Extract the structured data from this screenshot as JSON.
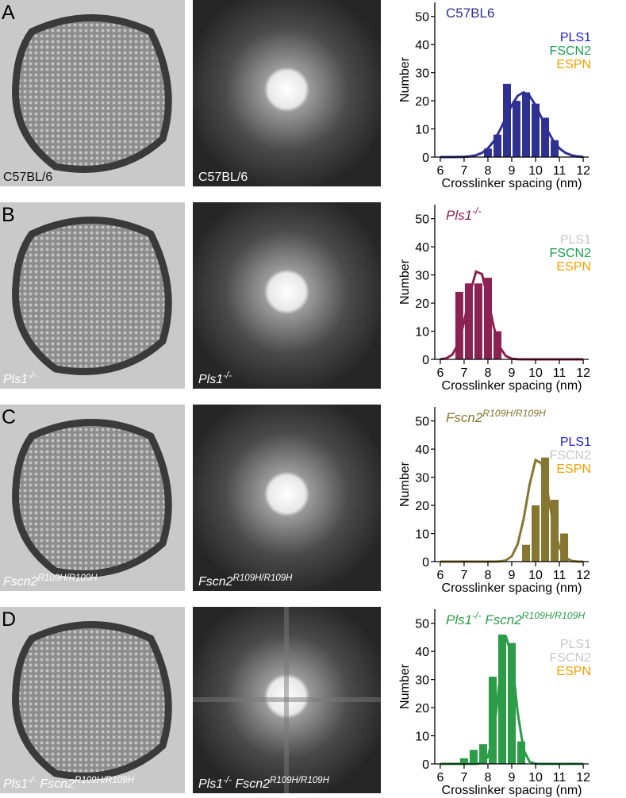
{
  "panels": [
    {
      "letter": "A",
      "em_caption": [
        "C57BL/6"
      ],
      "fft_caption": [
        "C57BL/6"
      ]
    },
    {
      "letter": "B",
      "em_caption": [
        "Pls1",
        "-/-"
      ],
      "fft_caption": [
        "Pls1",
        "-/-"
      ]
    },
    {
      "letter": "C",
      "em_caption": [
        "Fscn2",
        "R109H/R109H"
      ],
      "fft_caption": [
        "Fscn2",
        "R109H/R109H"
      ]
    },
    {
      "letter": "D",
      "em_caption": [
        "Pls1",
        "-/-",
        " Fscn2",
        "R109H/R109H"
      ],
      "fft_caption": [
        "Pls1",
        "-/-",
        " Fscn2",
        "R109H/R109H"
      ]
    }
  ],
  "chart_data": [
    {
      "type": "histogram",
      "title": [
        "C57BL6"
      ],
      "title_italic": false,
      "color": "#2e3192",
      "legend": [
        {
          "name": "PLS1",
          "color": "#2020c8"
        },
        {
          "name": "FSCN2",
          "color": "#1aa050"
        },
        {
          "name": "ESPN",
          "color": "#f5a000"
        }
      ],
      "bins": [
        7.8,
        8.2,
        8.6,
        9.0,
        9.4,
        9.8,
        10.2,
        10.6,
        11.0
      ],
      "values": [
        3,
        8,
        26,
        20,
        23,
        19,
        14,
        6
      ],
      "fit": {
        "x": [
          6,
          6.25,
          6.5,
          6.75,
          7,
          7.25,
          7.5,
          7.75,
          8,
          8.25,
          8.5,
          8.75,
          9,
          9.25,
          9.5,
          9.75,
          10,
          10.25,
          10.5,
          10.75,
          11,
          11.25,
          11.5,
          11.75,
          12
        ],
        "values": [
          0,
          0,
          0,
          0.03,
          0.09,
          0.26,
          0.65,
          1.5,
          3.1,
          5.7,
          9.5,
          14,
          18.4,
          21.8,
          23,
          21.8,
          18.4,
          14,
          9.5,
          5.7,
          3.1,
          1.5,
          0.65,
          0.26,
          0.09
        ]
      },
      "xlabel": "Crosslinker spacing (nm)",
      "ylabel": "Number",
      "xlim": [
        5.77,
        12.23
      ],
      "ylim": [
        0,
        55
      ],
      "xticks": [
        6,
        7,
        8,
        9,
        10,
        11,
        12
      ],
      "yticks": [
        0,
        10,
        20,
        30,
        40,
        50
      ]
    },
    {
      "type": "histogram",
      "title": [
        "Pls1",
        "-/-"
      ],
      "title_italic": true,
      "color": "#8b2252",
      "legend": [
        {
          "name": "PLS1",
          "color": "#c8c8c8"
        },
        {
          "name": "FSCN2",
          "color": "#1aa050"
        },
        {
          "name": "ESPN",
          "color": "#f5a000"
        }
      ],
      "bins": [
        6.6,
        7.0,
        7.4,
        7.8,
        8.2,
        8.6
      ],
      "values": [
        24,
        27,
        27,
        29,
        10
      ],
      "fit": {
        "x": [
          6,
          6.25,
          6.5,
          6.75,
          7,
          7.25,
          7.5,
          7.75,
          8,
          8.25,
          8.5,
          8.75,
          9,
          9.25,
          9.5,
          9.75,
          10,
          10.25,
          10.5,
          10.75,
          11,
          11.25,
          11.5,
          11.75,
          12
        ],
        "values": [
          0.06,
          0.36,
          1.6,
          5.4,
          13.2,
          23.6,
          31.2,
          30.3,
          21.5,
          11.3,
          4.3,
          1.2,
          0.25,
          0.04,
          0,
          0,
          0,
          0,
          0,
          0,
          0,
          0,
          0,
          0,
          0
        ]
      },
      "xlabel": "Crosslinker spacing (nm)",
      "ylabel": "Number",
      "xlim": [
        5.77,
        12.23
      ],
      "ylim": [
        0,
        55
      ],
      "xticks": [
        6,
        7,
        8,
        9,
        10,
        11,
        12
      ],
      "yticks": [
        0,
        10,
        20,
        30,
        40,
        50
      ]
    },
    {
      "type": "histogram",
      "title": [
        "Fscn2",
        "R109H/R109H"
      ],
      "title_italic": true,
      "color": "#857631",
      "legend": [
        {
          "name": "PLS1",
          "color": "#2020c8"
        },
        {
          "name": "FSCN2",
          "color": "#c8c8c8"
        },
        {
          "name": "ESPN",
          "color": "#f5a000"
        }
      ],
      "bins": [
        9.4,
        9.8,
        10.2,
        10.6,
        11.0,
        11.4
      ],
      "values": [
        6,
        20,
        37,
        22,
        10
      ],
      "fit": {
        "x": [
          6,
          6.25,
          6.5,
          6.75,
          7,
          7.25,
          7.5,
          7.75,
          8,
          8.25,
          8.5,
          8.75,
          9,
          9.25,
          9.5,
          9.75,
          10,
          10.25,
          10.5,
          10.75,
          11,
          11.25,
          11.5,
          11.75,
          12
        ],
        "values": [
          0,
          0,
          0,
          0,
          0,
          0,
          0,
          0,
          0,
          0,
          0.07,
          0.41,
          1.9,
          6.2,
          15.2,
          27.4,
          36.1,
          35,
          24.9,
          13.1,
          5,
          1.4,
          0.29,
          0.04,
          0
        ]
      },
      "xlabel": "Crosslinker spacing (nm)",
      "ylabel": "Number",
      "xlim": [
        5.77,
        12.23
      ],
      "ylim": [
        0,
        55
      ],
      "xticks": [
        6,
        7,
        8,
        9,
        10,
        11,
        12
      ],
      "yticks": [
        0,
        10,
        20,
        30,
        40,
        50
      ]
    },
    {
      "type": "histogram",
      "title": [
        "Pls1",
        "-/-",
        " Fscn2",
        "R109H/R109H"
      ],
      "title_italic": true,
      "color": "#2c9c48",
      "legend": [
        {
          "name": "PLS1",
          "color": "#c8c8c8"
        },
        {
          "name": "FSCN2",
          "color": "#c8c8c8"
        },
        {
          "name": "ESPN",
          "color": "#f5a000"
        }
      ],
      "bins": [
        6.8,
        7.2,
        7.6,
        8.0,
        8.4,
        8.8,
        9.2,
        9.6
      ],
      "values": [
        2,
        5,
        7,
        31,
        46,
        43,
        8
      ],
      "fit": {
        "x": [
          6,
          6.25,
          6.5,
          6.75,
          7,
          7.25,
          7.5,
          7.75,
          8,
          8.25,
          8.5,
          8.75,
          9,
          9.25,
          9.5,
          9.75,
          10,
          10.25,
          10.5,
          10.75,
          11,
          11.25,
          11.5,
          11.75,
          12
        ],
        "values": [
          0,
          0,
          0,
          0,
          0,
          0,
          0.02,
          0.28,
          2.5,
          11.4,
          30.4,
          45.5,
          38.2,
          18.2,
          4.9,
          0.73,
          0.06,
          0,
          0,
          0,
          0,
          0,
          0,
          0,
          0
        ]
      },
      "xlabel": "Crosslinker spacing (nm)",
      "ylabel": "Number",
      "xlim": [
        5.77,
        12.23
      ],
      "ylim": [
        0,
        55
      ],
      "xticks": [
        6,
        7,
        8,
        9,
        10,
        11,
        12
      ],
      "yticks": [
        0,
        10,
        20,
        30,
        40,
        50
      ]
    }
  ]
}
